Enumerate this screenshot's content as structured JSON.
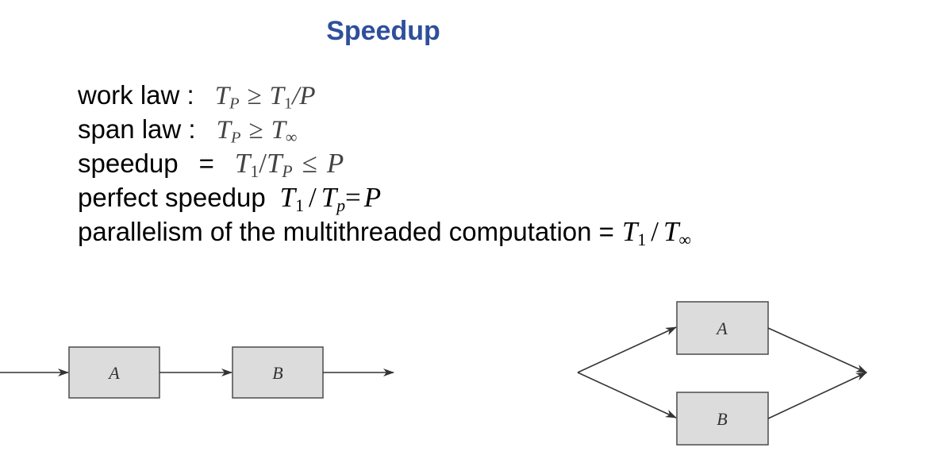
{
  "title": "Speedup",
  "laws": {
    "work_law": {
      "label": "work law :",
      "lhs": "T",
      "lhs_sub": "P",
      "rel": "≥",
      "rhs": "T",
      "rhs_sub": "1",
      "rhs_tail": "/P"
    },
    "span_law": {
      "label": "span law :",
      "lhs": "T",
      "lhs_sub": "P",
      "rel": "≥",
      "rhs": "T",
      "rhs_sub": "∞"
    },
    "speedup": {
      "label": "speedup",
      "eq": "=",
      "lhs": "T",
      "lhs_sub": "1",
      "slash": "/",
      "den": "T",
      "den_sub": "P",
      "rel": "≤",
      "rhs": "P"
    },
    "perfect": {
      "label": "perfect speedup",
      "num": "T",
      "num_sub": "1",
      "slash": "/",
      "den": "T",
      "den_sub": "p",
      "eq": "=",
      "rhs": "P"
    },
    "parallelism": {
      "label": "parallelism of the multithreaded computation =",
      "num": "T",
      "num_sub": "1",
      "slash": "/",
      "den": "T",
      "den_sub": "∞"
    }
  },
  "diagrams": {
    "serial": {
      "box_a": "A",
      "box_b": "B"
    },
    "parallel": {
      "box_a": "A",
      "box_b": "B"
    }
  }
}
